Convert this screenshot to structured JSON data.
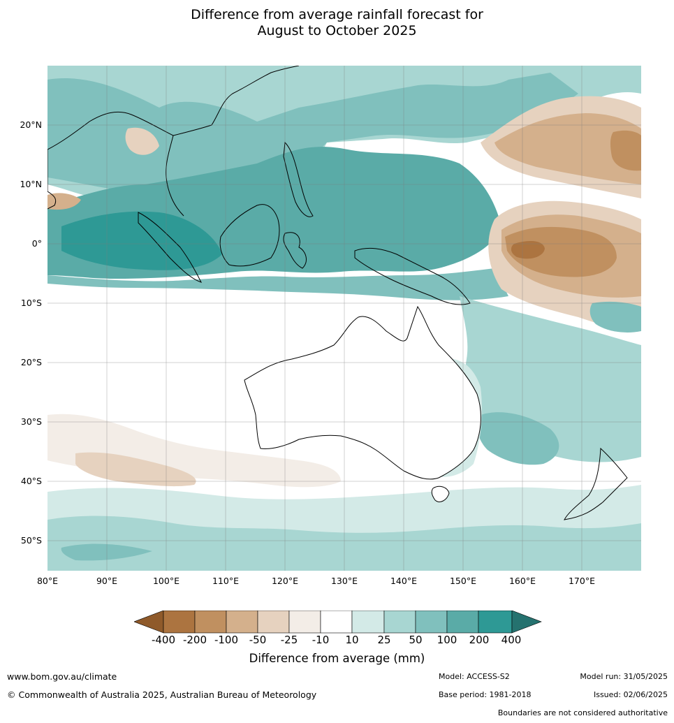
{
  "title": {
    "line1": "Difference from average rainfall forecast for",
    "line2": "August to October 2025"
  },
  "map": {
    "projection": "equirectangular",
    "lon_range": [
      80,
      180
    ],
    "lat_range": [
      -55,
      30
    ],
    "lat_labels": [
      "20°N",
      "10°N",
      "0°",
      "10°S",
      "20°S",
      "30°S",
      "40°S",
      "50°S"
    ],
    "lon_labels": [
      "80°E",
      "90°E",
      "100°E",
      "110°E",
      "120°E",
      "130°E",
      "140°E",
      "150°E",
      "160°E",
      "170°E"
    ],
    "regions": [
      {
        "name": "Maritime continent / eastern Indian Ocean",
        "category": "100 to 200",
        "color": "#5aaba7"
      },
      {
        "name": "Equatorial central Pacific",
        "category": "-200 to -100",
        "color": "#c09060"
      },
      {
        "name": "North-west Pacific",
        "category": "-100 to -50",
        "color": "#d4b08c"
      },
      {
        "name": "Eastern Australia",
        "category": "10 to 25",
        "color": "#d3eae7"
      },
      {
        "name": "Southern Ocean",
        "category": "25 to 50",
        "color": "#a8d6d2"
      },
      {
        "name": "Southern Indian Ocean",
        "category": "-25 to -10",
        "color": "#f3ede7"
      }
    ]
  },
  "colorbar": {
    "label": "Difference from average (mm)",
    "ticks": [
      "-400",
      "-200",
      "-100",
      "-50",
      "-25",
      "-10",
      "10",
      "25",
      "50",
      "100",
      "200",
      "400"
    ],
    "colors": [
      "#8f5a2a",
      "#ac7440",
      "#c09060",
      "#d4b08c",
      "#e6d2bf",
      "#f3ede7",
      "#ffffff",
      "#d3eae7",
      "#a8d6d2",
      "#80c0bd",
      "#5aaba7",
      "#2e9995",
      "#25726f"
    ]
  },
  "footer": {
    "website": "www.bom.gov.au/climate",
    "copyright": "© Commonwealth of Australia 2025, Australian Bureau of Meteorology",
    "model": "Model: ACCESS-S2",
    "base_period": "Base period: 1981-2018",
    "model_run": "Model run: 31/05/2025",
    "issued": "Issued: 02/06/2025",
    "disclaimer": "Boundaries are not considered authoritative"
  }
}
